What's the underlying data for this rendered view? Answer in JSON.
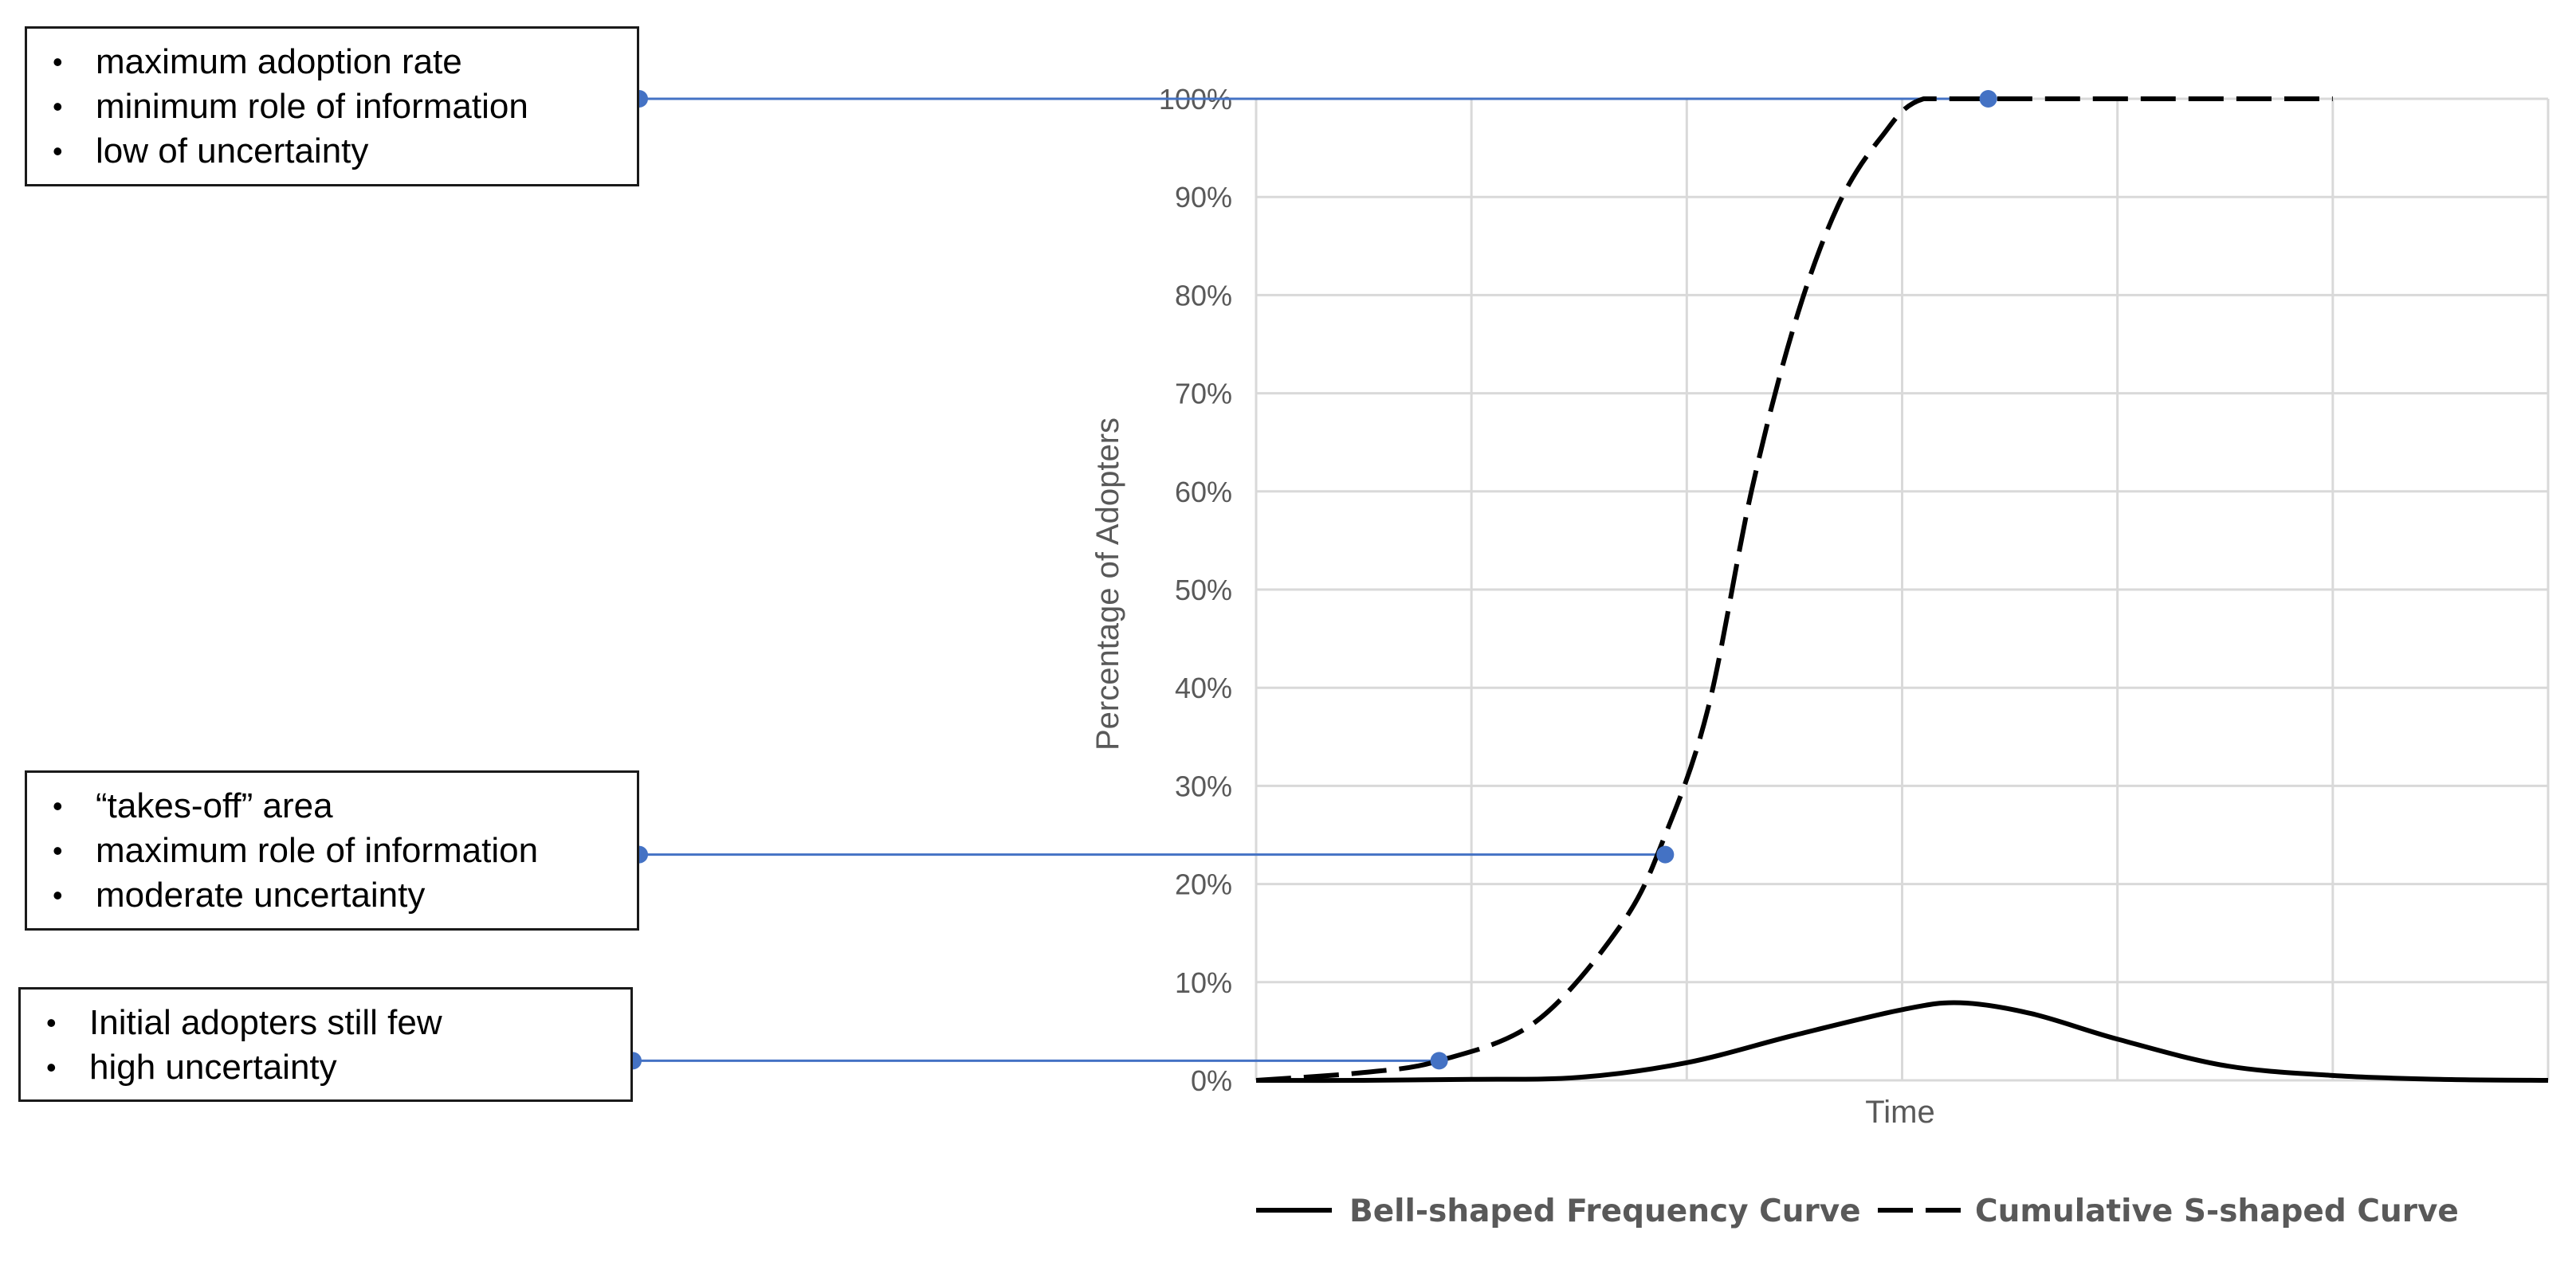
{
  "colors": {
    "grid": "#d9d9d9",
    "axis_text": "#595959",
    "curve": "#000000",
    "connector": "#4472c4"
  },
  "annotations": [
    {
      "items": [
        "maximum adoption rate",
        "minimum role of information",
        "low of uncertainty"
      ]
    },
    {
      "items": [
        "“takes-off” area",
        "maximum role of information",
        "moderate uncertainty"
      ]
    },
    {
      "items": [
        "Initial adopters still few",
        "high uncertainty"
      ]
    }
  ],
  "chart_data": {
    "type": "line",
    "title": "",
    "xlabel": "Time",
    "ylabel": "Percentage of Adopters",
    "ylim": [
      0,
      100
    ],
    "xlim": [
      0,
      6
    ],
    "x_gridlines": [
      0,
      1,
      2,
      3,
      4,
      5,
      6
    ],
    "yticks": [
      "0%",
      "10%",
      "20%",
      "30%",
      "40%",
      "50%",
      "60%",
      "70%",
      "80%",
      "90%",
      "100%"
    ],
    "grid": true,
    "legend_position": "bottom",
    "series": [
      {
        "name": "Bell-shaped Frequency Curve",
        "style": "solid",
        "x": [
          0,
          0.5,
          1.0,
          1.5,
          2.0,
          2.5,
          3.0,
          3.27,
          3.6,
          4.0,
          4.5,
          5.0,
          5.5,
          6.0
        ],
        "y": [
          0,
          0,
          0.1,
          0.3,
          1.8,
          4.6,
          7.2,
          7.9,
          6.8,
          4.2,
          1.5,
          0.5,
          0.1,
          0
        ]
      },
      {
        "name": "Cumulative S-shaped Curve",
        "style": "dashed",
        "x": [
          0,
          0.5,
          0.85,
          1.3,
          1.7,
          1.9,
          2.1,
          2.3,
          2.5,
          2.7,
          2.9,
          3.1,
          3.5,
          4.0,
          5.0
        ],
        "y": [
          0,
          0.8,
          2,
          6,
          16,
          25,
          38,
          60,
          77,
          89,
          96,
          100,
          100,
          100,
          100
        ]
      }
    ],
    "markers": [
      {
        "x": 3.4,
        "y": 100
      },
      {
        "x": 1.9,
        "y": 23
      },
      {
        "x": 0.85,
        "y": 2
      }
    ]
  }
}
